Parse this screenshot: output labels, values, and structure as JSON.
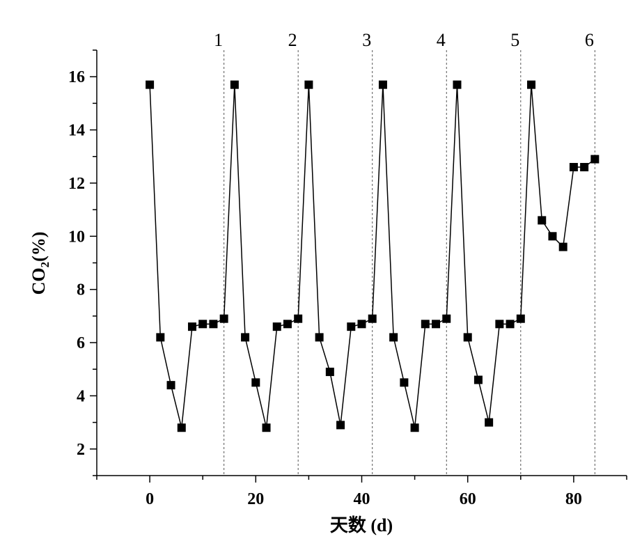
{
  "chart_data": {
    "type": "line",
    "xlabel": "天数 (d)",
    "ylabel_main": "CO",
    "ylabel_sub": "2",
    "ylabel_suffix": "(%)",
    "xlim": [
      -10,
      90
    ],
    "ylim": [
      1,
      17
    ],
    "xticks": [
      0,
      20,
      40,
      60,
      80
    ],
    "yticks": [
      2,
      4,
      6,
      8,
      10,
      12,
      14,
      16
    ],
    "grid": false,
    "marker": "square",
    "series": [
      {
        "x": [
          0,
          2,
          4,
          6,
          8,
          10,
          12,
          14,
          16,
          18,
          20,
          22,
          24,
          26,
          28,
          30,
          32,
          34,
          36,
          38,
          40,
          42,
          44,
          46,
          48,
          50,
          52,
          54,
          56,
          58,
          60,
          62,
          64,
          66,
          68,
          70,
          72,
          74,
          76,
          78,
          80,
          82,
          84
        ],
        "y": [
          15.7,
          6.2,
          4.4,
          2.8,
          6.6,
          6.7,
          6.7,
          6.9,
          15.7,
          6.2,
          4.5,
          2.8,
          6.6,
          6.7,
          6.9,
          15.7,
          6.2,
          4.9,
          2.9,
          6.6,
          6.7,
          6.9,
          15.7,
          6.2,
          4.5,
          2.8,
          6.7,
          6.7,
          6.9,
          15.7,
          6.2,
          4.6,
          3.0,
          6.7,
          6.7,
          6.9,
          15.7,
          10.6,
          10.0,
          9.6,
          12.6,
          12.6,
          12.9
        ]
      }
    ],
    "vlines": [
      {
        "x": 14,
        "label": "1"
      },
      {
        "x": 28,
        "label": "2"
      },
      {
        "x": 42,
        "label": "3"
      },
      {
        "x": 56,
        "label": "4"
      },
      {
        "x": 70,
        "label": "5"
      },
      {
        "x": 84,
        "label": "6"
      }
    ],
    "colors": {
      "line": "#000000",
      "marker": "#000000",
      "vline": "#555555"
    }
  }
}
